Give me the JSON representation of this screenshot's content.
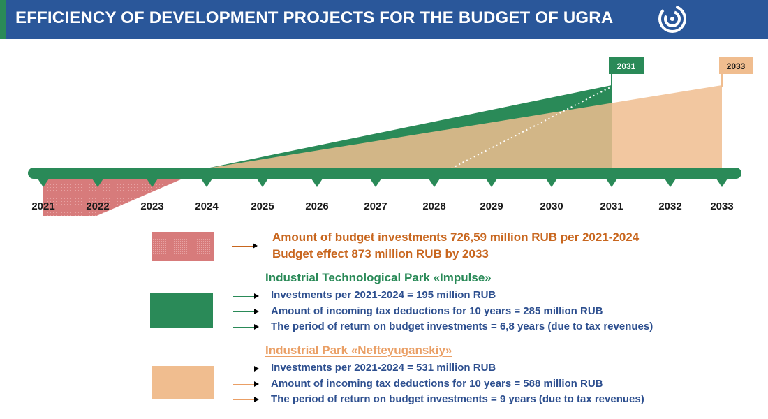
{
  "header": {
    "title": "EFFICIENCY OF DEVELOPMENT PROJECTS FOR THE BUDGET OF UGRA",
    "logo_icon": "swirl-logo-icon"
  },
  "colors": {
    "header_bg": "#2a579a",
    "timeline": "#2a8a58",
    "budget_red": "#d77b7b",
    "impulse_green": "#2a8a58",
    "nefteyugansk_peach": "#f0bd8f",
    "text_orange": "#c8661e",
    "text_blue": "#2d4f8f",
    "heading_peach": "#ea9f65"
  },
  "chart_data": {
    "type": "area",
    "x": [
      2021,
      2022,
      2023,
      2024,
      2025,
      2026,
      2027,
      2028,
      2029,
      2030,
      2031,
      2032,
      2033
    ],
    "tick_labels": [
      "2021",
      "2022",
      "2023",
      "2024",
      "2025",
      "2026",
      "2027",
      "2028",
      "2029",
      "2030",
      "2031",
      "2032",
      "2033"
    ],
    "flags": [
      {
        "label": "2031",
        "year": 2031,
        "color": "#2a8a58"
      },
      {
        "label": "2033",
        "year": 2033,
        "color": "#f0bd8f"
      }
    ],
    "series": [
      {
        "key": "budget",
        "role": "investment",
        "x_start": 2021,
        "x_end": 2024,
        "color": "#d77b7b"
      },
      {
        "key": "impulse",
        "role": "return",
        "x_start": 2024,
        "x_end": 2031,
        "color": "#2a8a58",
        "dotted_trend_from": 2028.3
      },
      {
        "key": "nefteyugansk",
        "role": "return",
        "x_start": 2024,
        "x_end": 2033,
        "color": "#f0bd8f"
      }
    ]
  },
  "legend": {
    "budget": {
      "lines": [
        "Amount of budget investments 726,59 million RUB per 2021-2024",
        "Budget effect 873 million RUB by 2033"
      ]
    },
    "impulse": {
      "heading": "Industrial Technological Park «Impulse»",
      "lines": [
        "Investments per 2021-2024 = 195 million RUB",
        "Amount of incoming tax deductions for 10 years = 285 million RUB",
        "The period of return on budget investments = 6,8 years (due to tax revenues)"
      ]
    },
    "nefteyugansk": {
      "heading": "Industrial Park «Nefteyuganskiy»",
      "lines": [
        "Investments per 2021-2024 = 531 million RUB",
        "Amount of incoming tax deductions for 10 years = 588 million RUB",
        "The period of return on budget investments = 9 years (due to tax revenues)"
      ]
    }
  }
}
